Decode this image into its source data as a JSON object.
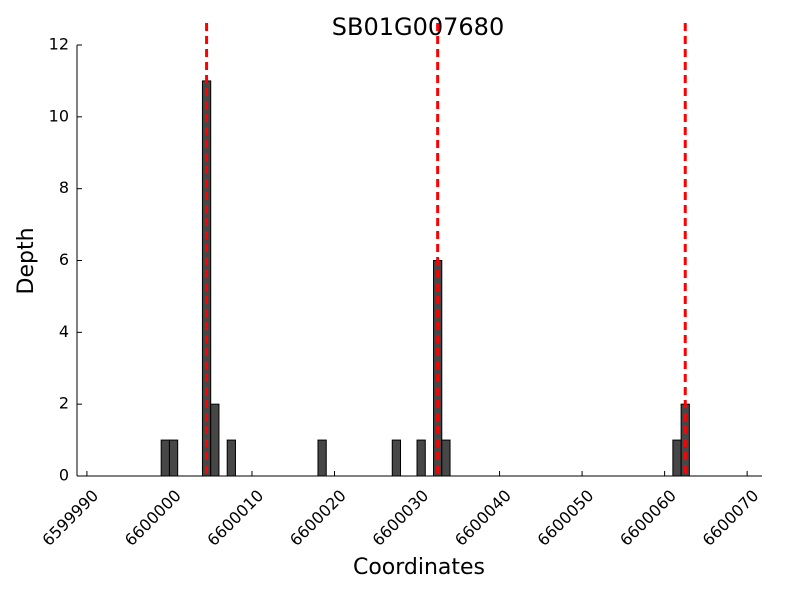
{
  "chart_data": {
    "type": "bar",
    "title": "SB01G007680",
    "x_label": "Coordinates",
    "y_label": "Depth",
    "x": [
      6599999,
      6600000,
      6600004,
      6600005,
      6600007,
      6600018,
      6600027,
      6600030,
      6600032,
      6600033,
      6600061,
      6600062
    ],
    "values": [
      1,
      1,
      11,
      2,
      1,
      1,
      1,
      1,
      6,
      1,
      1,
      2
    ],
    "bar_width": 1,
    "color": "#474747",
    "edge_color": "#000000",
    "xlim": [
      6599988.8,
      6600071.8
    ],
    "xticks": [
      6599990,
      6600000,
      6600010,
      6600020,
      6600030,
      6600040,
      6600050,
      6600060,
      6600070
    ],
    "ylim": [
      0,
      12
    ],
    "yticks": [
      0,
      2,
      4,
      6,
      8,
      10,
      12
    ],
    "vlines": [
      6600004.5,
      6600032.5,
      6600062.5
    ],
    "vline_color": "#ff0000",
    "grid": false
  }
}
